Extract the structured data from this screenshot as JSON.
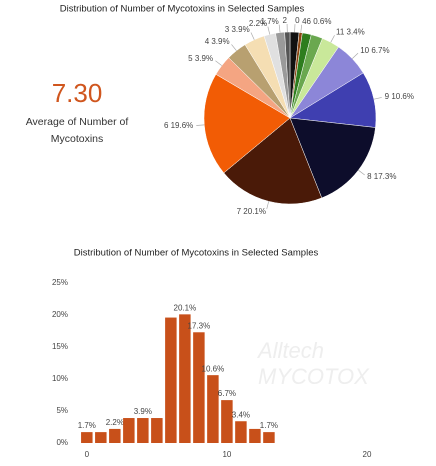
{
  "kpi": {
    "value": "7.30",
    "label": "Average of Number of Mycotoxins"
  },
  "watermark": [
    "Alltech",
    "MYCOTOX"
  ],
  "chart_data": [
    {
      "type": "pie",
      "title": "Distribution of Number of Mycotoxins in Selected Samples",
      "values": [
        1.7,
        0.6,
        1.7,
        2.2,
        3.4,
        6.7,
        10.6,
        17.3,
        20.1,
        19.6,
        3.9,
        3.9,
        3.9,
        2.2,
        1.7,
        1.0
      ],
      "labels": [
        "0",
        "46 0.6%",
        null,
        null,
        "11 3.4%",
        "10 6.7%",
        "9 10.6%",
        "8 17.3%",
        "7 20.1%",
        "6 19.6%",
        "5 3.9%",
        "4 3.9%",
        "3 3.9%",
        "2.2%",
        "1.7%",
        "2"
      ],
      "colors": [
        "#111111",
        "#8b4513",
        "#2e7d1e",
        "#6aa84f",
        "#c9e89a",
        "#8c86d8",
        "#3f3fb0",
        "#0d0d2b",
        "#4a1a08",
        "#f25c05",
        "#f4a582",
        "#b8a070",
        "#f5deb3",
        "#e0e0e0",
        "#9a9a9a",
        "#555555"
      ]
    },
    {
      "type": "bar",
      "title": "Distribution of Number of Mycotoxins in Selected Samples",
      "x": [
        0,
        1,
        2,
        3,
        4,
        5,
        6,
        7,
        8,
        9,
        10,
        11,
        12,
        13
      ],
      "values": [
        1.7,
        1.7,
        2.2,
        3.9,
        3.9,
        3.9,
        19.6,
        20.1,
        17.3,
        10.6,
        6.7,
        3.4,
        2.2,
        1.7
      ],
      "value_labels": [
        "1.7%",
        null,
        "2.2%",
        null,
        "3.9%",
        null,
        null,
        "20.1%",
        "17.3%",
        "10.6%",
        "6.7%",
        "3.4%",
        null,
        "1.7%"
      ],
      "color": "#c8501a",
      "xlim": [
        -1.2,
        22
      ],
      "xticks": [
        0,
        10,
        20
      ],
      "ylim": [
        0,
        25
      ],
      "yticks": [
        {
          "value": 0,
          "label": "0%"
        },
        {
          "value": 5,
          "label": "5%"
        },
        {
          "value": 10,
          "label": "10%"
        },
        {
          "value": 15,
          "label": "15%"
        },
        {
          "value": 20,
          "label": "20%"
        },
        {
          "value": 25,
          "label": "25%"
        }
      ]
    }
  ]
}
